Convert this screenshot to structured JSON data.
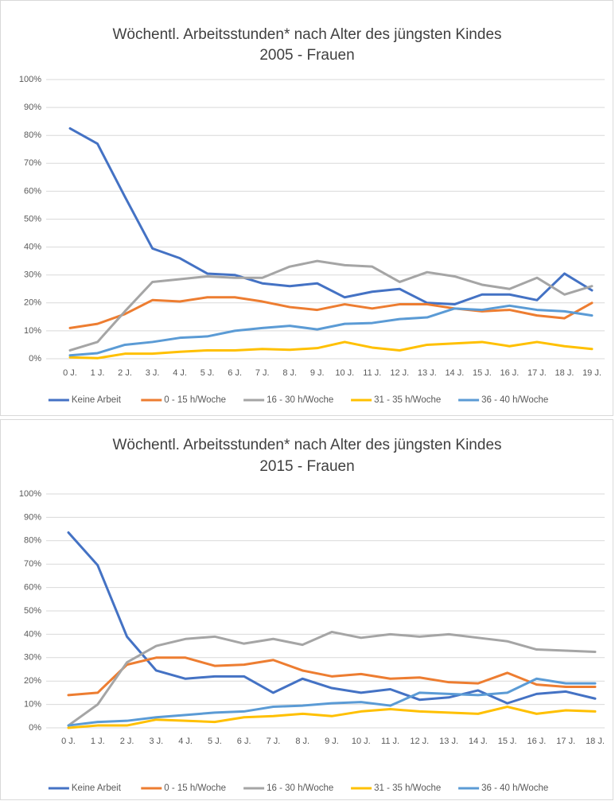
{
  "chart_data": [
    {
      "type": "line",
      "title": "Wöchentl. Arbeitsstunden* nach Alter des jüngsten Kindes",
      "subtitle": "2005 - Frauen",
      "categories": [
        "0 J.",
        "1 J.",
        "2 J.",
        "3 J.",
        "4 J.",
        "5 J.",
        "6 J.",
        "7 J.",
        "8 J.",
        "9 J.",
        "10 J.",
        "11 J.",
        "12 J.",
        "13 J.",
        "14 J.",
        "15 J.",
        "16 J.",
        "17 J.",
        "18 J.",
        "19 J."
      ],
      "series": [
        {
          "name": "Keine Arbeit",
          "color": "#4472c4",
          "values": [
            82.5,
            77,
            58,
            39.5,
            36,
            30.5,
            30,
            27,
            26,
            27,
            22,
            24,
            25,
            20,
            19.5,
            23,
            23,
            21,
            30.5,
            24.5
          ]
        },
        {
          "name": "0 - 15 h/Woche",
          "color": "#ed7d31",
          "values": [
            11,
            12.5,
            16,
            21,
            20.5,
            22,
            22,
            20.5,
            18.5,
            17.5,
            19.5,
            18,
            19.5,
            19.5,
            18,
            17,
            17.5,
            15.5,
            14.5,
            20
          ]
        },
        {
          "name": "16 - 30 h/Woche",
          "color": "#a5a5a5",
          "values": [
            3,
            6,
            17,
            27.5,
            28.5,
            29.5,
            29,
            29,
            33,
            35,
            33.5,
            33,
            27.5,
            31,
            29.5,
            26.5,
            25,
            29,
            23,
            26
          ]
        },
        {
          "name": "31 - 35 h/Woche",
          "color": "#ffc000",
          "values": [
            0.5,
            0.2,
            1.8,
            1.8,
            2.5,
            3,
            3,
            3.5,
            3.2,
            3.8,
            6,
            4,
            3,
            5,
            5.5,
            6,
            4.5,
            6,
            4.5,
            3.5
          ]
        },
        {
          "name": "36 - 40 h/Woche",
          "color": "#5b9bd5",
          "values": [
            1.2,
            2,
            5,
            6,
            7.5,
            8,
            10,
            11,
            11.8,
            10.5,
            12.5,
            12.8,
            14.2,
            14.8,
            18,
            17.5,
            19,
            17.5,
            17,
            15.5
          ]
        }
      ],
      "ylim": [
        0,
        100
      ],
      "yticks": [
        {
          "value": 0,
          "label": "0%"
        },
        {
          "value": 10,
          "label": "10%"
        },
        {
          "value": 20,
          "label": "20%"
        },
        {
          "value": 30,
          "label": "30%"
        },
        {
          "value": 40,
          "label": "40%"
        },
        {
          "value": 50,
          "label": "50%"
        },
        {
          "value": 60,
          "label": "60%"
        },
        {
          "value": 70,
          "label": "70%"
        },
        {
          "value": 80,
          "label": "80%"
        },
        {
          "value": 90,
          "label": "90%"
        },
        {
          "value": 100,
          "label": "100%"
        }
      ],
      "grid": true,
      "legend": "bottom"
    },
    {
      "type": "line",
      "title": "Wöchentl. Arbeitsstunden* nach Alter des jüngsten Kindes",
      "subtitle": "2015 - Frauen",
      "categories": [
        "0 J.",
        "1 J.",
        "2 J.",
        "3 J.",
        "4 J.",
        "5 J.",
        "6 J.",
        "7 J.",
        "8 J.",
        "9 J.",
        "10 J.",
        "11 J.",
        "12 J.",
        "13 J.",
        "14 J.",
        "15 J.",
        "16 J.",
        "17 J.",
        "18 J."
      ],
      "series": [
        {
          "name": "Keine Arbeit",
          "color": "#4472c4",
          "values": [
            83.5,
            69.5,
            39,
            24.5,
            21,
            22,
            22,
            15,
            21,
            17,
            15,
            16.5,
            12,
            13,
            16,
            10.5,
            14.5,
            15.5,
            12.5
          ]
        },
        {
          "name": "0 - 15 h/Woche",
          "color": "#ed7d31",
          "values": [
            14,
            15,
            27,
            30,
            30,
            26.5,
            27,
            29,
            24.5,
            22,
            23,
            21,
            21.5,
            19.5,
            19,
            23.5,
            18.5,
            17.5,
            17.5
          ]
        },
        {
          "name": "16 - 30 h/Woche",
          "color": "#a5a5a5",
          "values": [
            1,
            10,
            28,
            35,
            38,
            39,
            36,
            38,
            35.5,
            41,
            38.5,
            40,
            39,
            40,
            38.5,
            37,
            33.5,
            33,
            32.5
          ]
        },
        {
          "name": "31 - 35 h/Woche",
          "color": "#ffc000",
          "values": [
            0,
            1,
            1,
            3.5,
            3,
            2.5,
            4.5,
            5,
            6,
            5,
            7,
            8,
            7,
            6.5,
            6,
            9,
            6,
            7.5,
            7
          ]
        },
        {
          "name": "36 - 40 h/Woche",
          "color": "#5b9bd5",
          "values": [
            1,
            2.5,
            3,
            4.5,
            5.5,
            6.5,
            7,
            9,
            9.5,
            10.5,
            11,
            9.5,
            15,
            14.5,
            14,
            15,
            21,
            19,
            19
          ]
        }
      ],
      "ylim": [
        0,
        100
      ],
      "yticks": [
        {
          "value": 0,
          "label": "0%"
        },
        {
          "value": 10,
          "label": "10%"
        },
        {
          "value": 20,
          "label": "20%"
        },
        {
          "value": 30,
          "label": "30%"
        },
        {
          "value": 40,
          "label": "40%"
        },
        {
          "value": 50,
          "label": "50%"
        },
        {
          "value": 60,
          "label": "60%"
        },
        {
          "value": 70,
          "label": "70%"
        },
        {
          "value": 80,
          "label": "80%"
        },
        {
          "value": 90,
          "label": "90%"
        },
        {
          "value": 100,
          "label": "100%"
        }
      ],
      "grid": true,
      "legend": "bottom"
    }
  ]
}
